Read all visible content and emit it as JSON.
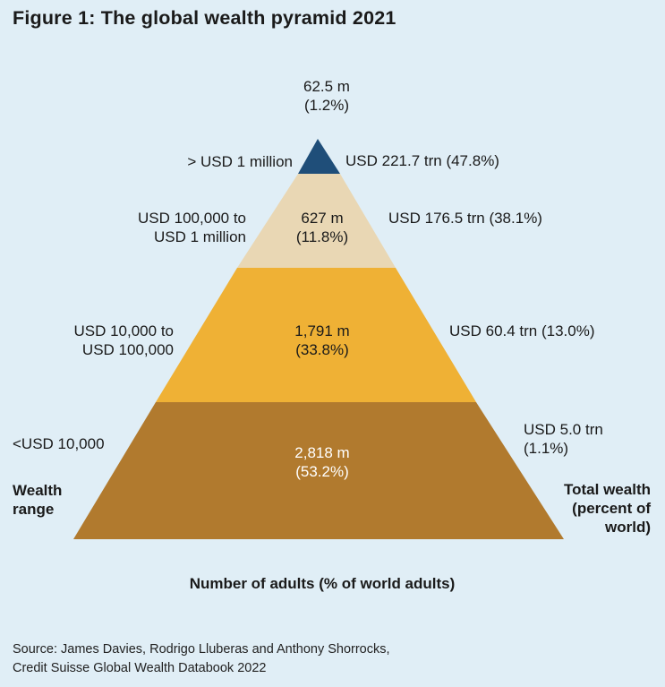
{
  "title": "Figure 1: The global wealth pyramid 2021",
  "tiers": [
    {
      "range": "> USD 1 million",
      "adults": "62.5 m",
      "adults_pct": "(1.2%)",
      "wealth": "USD 221.7 trn (47.8%)",
      "color": "#1f4e79"
    },
    {
      "range_line1": "USD 100,000 to",
      "range_line2": "USD 1 million",
      "adults": "627 m",
      "adults_pct": "(11.8%)",
      "wealth": "USD 176.5 trn (38.1%)",
      "color": "#e9d7b4"
    },
    {
      "range_line1": "USD 10,000 to",
      "range_line2": "USD 100,000",
      "adults": "1,791 m",
      "adults_pct": "(33.8%)",
      "wealth": "USD 60.4 trn (13.0%)",
      "color": "#efb135"
    },
    {
      "range": "<USD 10,000",
      "adults": "2,818 m",
      "adults_pct": "(53.2%)",
      "wealth_line1": "USD 5.0 trn",
      "wealth_line2": "(1.1%)",
      "color": "#b17a2e"
    }
  ],
  "legend": {
    "left_line1": "Wealth",
    "left_line2": "range",
    "right_line1": "Total wealth",
    "right_line2": "(percent of",
    "right_line3": "world)",
    "bottom": "Number of adults (% of world adults)"
  },
  "source": {
    "line1": "Source: James Davies, Rodrigo Lluberas and Anthony Shorrocks,",
    "line2": "Credit Suisse Global Wealth Databook 2022"
  }
}
